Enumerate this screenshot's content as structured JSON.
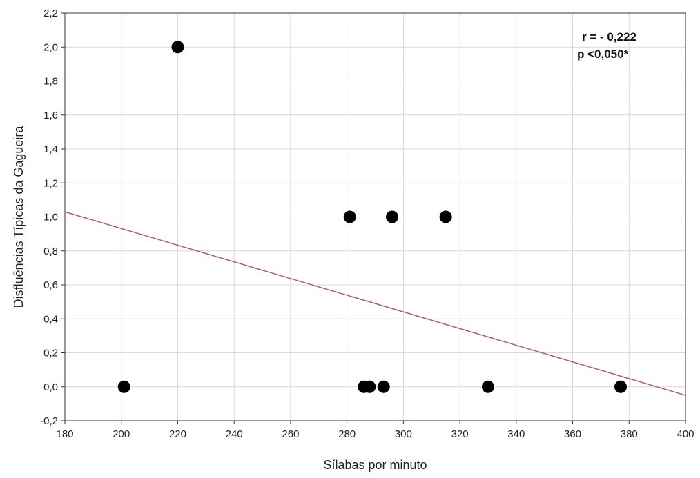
{
  "chart_data": {
    "type": "scatter",
    "title": "",
    "xlabel": "Sílabas por minuto",
    "ylabel": "Disfluências Típicas da Gagueira",
    "xlim": [
      180,
      400
    ],
    "ylim": [
      -0.2,
      2.2
    ],
    "x_ticks": [
      "180",
      "200",
      "220",
      "240",
      "260",
      "280",
      "300",
      "320",
      "340",
      "360",
      "380",
      "400"
    ],
    "y_ticks": [
      "-0,2",
      "0,0",
      "0,2",
      "0,4",
      "0,6",
      "0,8",
      "1,0",
      "1,2",
      "1,4",
      "1,6",
      "1,8",
      "2,0",
      "2,2"
    ],
    "grid": true,
    "points": [
      {
        "x": 220,
        "y": 2.0
      },
      {
        "x": 281,
        "y": 1.0
      },
      {
        "x": 296,
        "y": 1.0
      },
      {
        "x": 315,
        "y": 1.0
      },
      {
        "x": 201,
        "y": 0.0
      },
      {
        "x": 286,
        "y": 0.0
      },
      {
        "x": 288,
        "y": 0.0
      },
      {
        "x": 293,
        "y": 0.0
      },
      {
        "x": 330,
        "y": 0.0
      },
      {
        "x": 377,
        "y": 0.0
      }
    ],
    "trendline": {
      "x": [
        180,
        400
      ],
      "y": [
        1.03,
        -0.05
      ],
      "color": "#b25c5c"
    },
    "annotations": [
      "r = - 0,222",
      "p <0,050*"
    ],
    "marker_color": "#000000"
  }
}
